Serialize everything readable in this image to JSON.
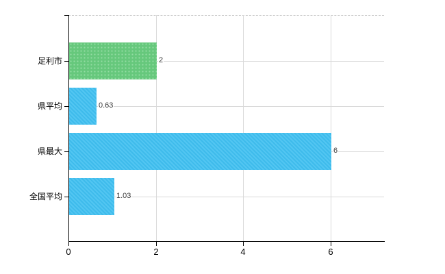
{
  "chart_data": {
    "type": "bar",
    "orientation": "horizontal",
    "title": "",
    "xlabel": "",
    "ylabel": "",
    "categories": [
      "足利市",
      "県平均",
      "県最大",
      "全国平均"
    ],
    "values": [
      2,
      0.63,
      6,
      1.03
    ],
    "value_labels": [
      "2",
      "0.63",
      "6",
      "1.03"
    ],
    "series": [
      {
        "name": "",
        "values": [
          2,
          0.63,
          6,
          1.03
        ]
      }
    ],
    "bar_color_keys": [
      "green",
      "blue",
      "blue",
      "blue"
    ],
    "x_ticks": [
      0,
      2,
      4,
      6
    ],
    "x_tick_labels": [
      "0",
      "2",
      "4",
      "6"
    ],
    "xlim": [
      0,
      7.23
    ],
    "grid": true,
    "legend": "none",
    "plot_border_top": "dashed"
  },
  "colors": {
    "bar_blue": "#3fbff0",
    "bar_green": "#66c87c",
    "bar_green_dots": "#94dca4",
    "grid": "#d9d9d9",
    "top_border_dashed": "#c9c9c9",
    "axis": "#000000",
    "value_label_text": "#3c3c3c",
    "category_label_text": "#000000",
    "background": "#ffffff"
  }
}
